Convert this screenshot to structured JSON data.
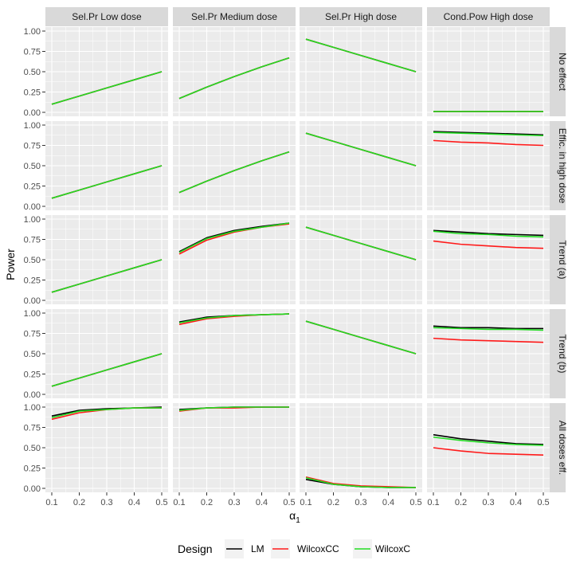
{
  "chart_data": {
    "type": "line",
    "facet_columns": [
      "Sel.Pr Low dose",
      "Sel.Pr Medium dose",
      "Sel.Pr High dose",
      "Cond.Pow High dose"
    ],
    "facet_rows": [
      "No effect",
      "Effic. in high dose",
      "Trend (a)",
      "Trend (b)",
      "All doses eff."
    ],
    "x": [
      0.1,
      0.2,
      0.3,
      0.4,
      0.5
    ],
    "x_ticks": [
      "0.1",
      "0.2",
      "0.3",
      "0.4",
      "0.5"
    ],
    "y_ticks": [
      "0.00",
      "0.25",
      "0.50",
      "0.75",
      "1.00"
    ],
    "xlabel": "α",
    "xlabel_sub": "1",
    "ylabel": "Power",
    "ylim": [
      0,
      1
    ],
    "xlim": [
      0.1,
      0.5
    ],
    "grid": true,
    "legend": {
      "title": "Design",
      "position": "bottom"
    },
    "series": [
      {
        "name": "LM",
        "color": "#000000"
      },
      {
        "name": "WilcoxCC",
        "color": "#ff1a1a"
      },
      {
        "name": "WilcoxC",
        "color": "#22dd22"
      }
    ],
    "panels": [
      [
        {
          "LM": [
            0.1,
            0.2,
            0.3,
            0.4,
            0.5
          ],
          "WilcoxCC": [
            0.1,
            0.2,
            0.3,
            0.4,
            0.5
          ],
          "WilcoxC": [
            0.1,
            0.2,
            0.3,
            0.4,
            0.5
          ]
        },
        {
          "LM": [
            0.17,
            0.31,
            0.44,
            0.56,
            0.67
          ],
          "WilcoxCC": [
            0.17,
            0.31,
            0.44,
            0.56,
            0.67
          ],
          "WilcoxC": [
            0.17,
            0.31,
            0.44,
            0.56,
            0.67
          ]
        },
        {
          "LM": [
            0.9,
            0.8,
            0.7,
            0.6,
            0.5
          ],
          "WilcoxCC": [
            0.9,
            0.8,
            0.7,
            0.6,
            0.5
          ],
          "WilcoxC": [
            0.9,
            0.8,
            0.7,
            0.6,
            0.5
          ]
        },
        {
          "LM": [
            0.01,
            0.01,
            0.01,
            0.01,
            0.01
          ],
          "WilcoxCC": [
            0.01,
            0.01,
            0.01,
            0.01,
            0.01
          ],
          "WilcoxC": [
            0.01,
            0.01,
            0.01,
            0.01,
            0.01
          ]
        }
      ],
      [
        {
          "LM": [
            0.1,
            0.2,
            0.3,
            0.4,
            0.5
          ],
          "WilcoxCC": [
            0.1,
            0.2,
            0.3,
            0.4,
            0.5
          ],
          "WilcoxC": [
            0.1,
            0.2,
            0.3,
            0.4,
            0.5
          ]
        },
        {
          "LM": [
            0.17,
            0.31,
            0.44,
            0.56,
            0.67
          ],
          "WilcoxCC": [
            0.17,
            0.31,
            0.44,
            0.56,
            0.67
          ],
          "WilcoxC": [
            0.17,
            0.31,
            0.44,
            0.56,
            0.67
          ]
        },
        {
          "LM": [
            0.9,
            0.8,
            0.7,
            0.6,
            0.5
          ],
          "WilcoxCC": [
            0.9,
            0.8,
            0.7,
            0.6,
            0.5
          ],
          "WilcoxC": [
            0.9,
            0.8,
            0.7,
            0.6,
            0.5
          ]
        },
        {
          "LM": [
            0.92,
            0.91,
            0.9,
            0.89,
            0.88
          ],
          "WilcoxCC": [
            0.81,
            0.79,
            0.78,
            0.76,
            0.75
          ],
          "WilcoxC": [
            0.91,
            0.9,
            0.89,
            0.88,
            0.87
          ]
        }
      ],
      [
        {
          "LM": [
            0.1,
            0.2,
            0.3,
            0.4,
            0.5
          ],
          "WilcoxCC": [
            0.1,
            0.2,
            0.3,
            0.4,
            0.5
          ],
          "WilcoxC": [
            0.1,
            0.2,
            0.3,
            0.4,
            0.5
          ]
        },
        {
          "LM": [
            0.6,
            0.77,
            0.86,
            0.91,
            0.95
          ],
          "WilcoxCC": [
            0.57,
            0.74,
            0.84,
            0.9,
            0.94
          ],
          "WilcoxC": [
            0.59,
            0.76,
            0.85,
            0.9,
            0.95
          ]
        },
        {
          "LM": [
            0.9,
            0.8,
            0.7,
            0.6,
            0.5
          ],
          "WilcoxCC": [
            0.9,
            0.8,
            0.7,
            0.6,
            0.5
          ],
          "WilcoxC": [
            0.9,
            0.8,
            0.7,
            0.6,
            0.5
          ]
        },
        {
          "LM": [
            0.86,
            0.84,
            0.82,
            0.81,
            0.8
          ],
          "WilcoxCC": [
            0.73,
            0.69,
            0.67,
            0.65,
            0.64
          ],
          "WilcoxC": [
            0.85,
            0.82,
            0.81,
            0.79,
            0.78
          ]
        }
      ],
      [
        {
          "LM": [
            0.1,
            0.2,
            0.3,
            0.4,
            0.5
          ],
          "WilcoxCC": [
            0.1,
            0.2,
            0.3,
            0.4,
            0.5
          ],
          "WilcoxC": [
            0.1,
            0.2,
            0.3,
            0.4,
            0.5
          ]
        },
        {
          "LM": [
            0.89,
            0.95,
            0.97,
            0.98,
            0.99
          ],
          "WilcoxCC": [
            0.86,
            0.93,
            0.96,
            0.98,
            0.99
          ],
          "WilcoxC": [
            0.88,
            0.94,
            0.97,
            0.98,
            0.99
          ]
        },
        {
          "LM": [
            0.9,
            0.8,
            0.7,
            0.6,
            0.5
          ],
          "WilcoxCC": [
            0.9,
            0.8,
            0.7,
            0.6,
            0.5
          ],
          "WilcoxC": [
            0.9,
            0.8,
            0.7,
            0.6,
            0.5
          ]
        },
        {
          "LM": [
            0.84,
            0.82,
            0.82,
            0.81,
            0.81
          ],
          "WilcoxCC": [
            0.69,
            0.67,
            0.66,
            0.65,
            0.64
          ],
          "WilcoxC": [
            0.82,
            0.81,
            0.8,
            0.8,
            0.79
          ]
        }
      ],
      [
        {
          "LM": [
            0.89,
            0.96,
            0.98,
            0.99,
            1.0
          ],
          "WilcoxCC": [
            0.85,
            0.93,
            0.97,
            0.99,
            0.99
          ],
          "WilcoxC": [
            0.87,
            0.95,
            0.97,
            0.99,
            0.99
          ]
        },
        {
          "LM": [
            0.97,
            0.99,
            1.0,
            1.0,
            1.0
          ],
          "WilcoxCC": [
            0.95,
            0.99,
            0.99,
            1.0,
            1.0
          ],
          "WilcoxC": [
            0.96,
            0.99,
            1.0,
            1.0,
            1.0
          ]
        },
        {
          "LM": [
            0.11,
            0.05,
            0.02,
            0.01,
            0.01
          ],
          "WilcoxCC": [
            0.14,
            0.06,
            0.03,
            0.02,
            0.01
          ],
          "WilcoxC": [
            0.13,
            0.05,
            0.02,
            0.01,
            0.01
          ]
        },
        {
          "LM": [
            0.66,
            0.61,
            0.58,
            0.55,
            0.54
          ],
          "WilcoxCC": [
            0.5,
            0.46,
            0.43,
            0.42,
            0.41
          ],
          "WilcoxC": [
            0.63,
            0.59,
            0.56,
            0.54,
            0.53
          ]
        }
      ]
    ]
  }
}
